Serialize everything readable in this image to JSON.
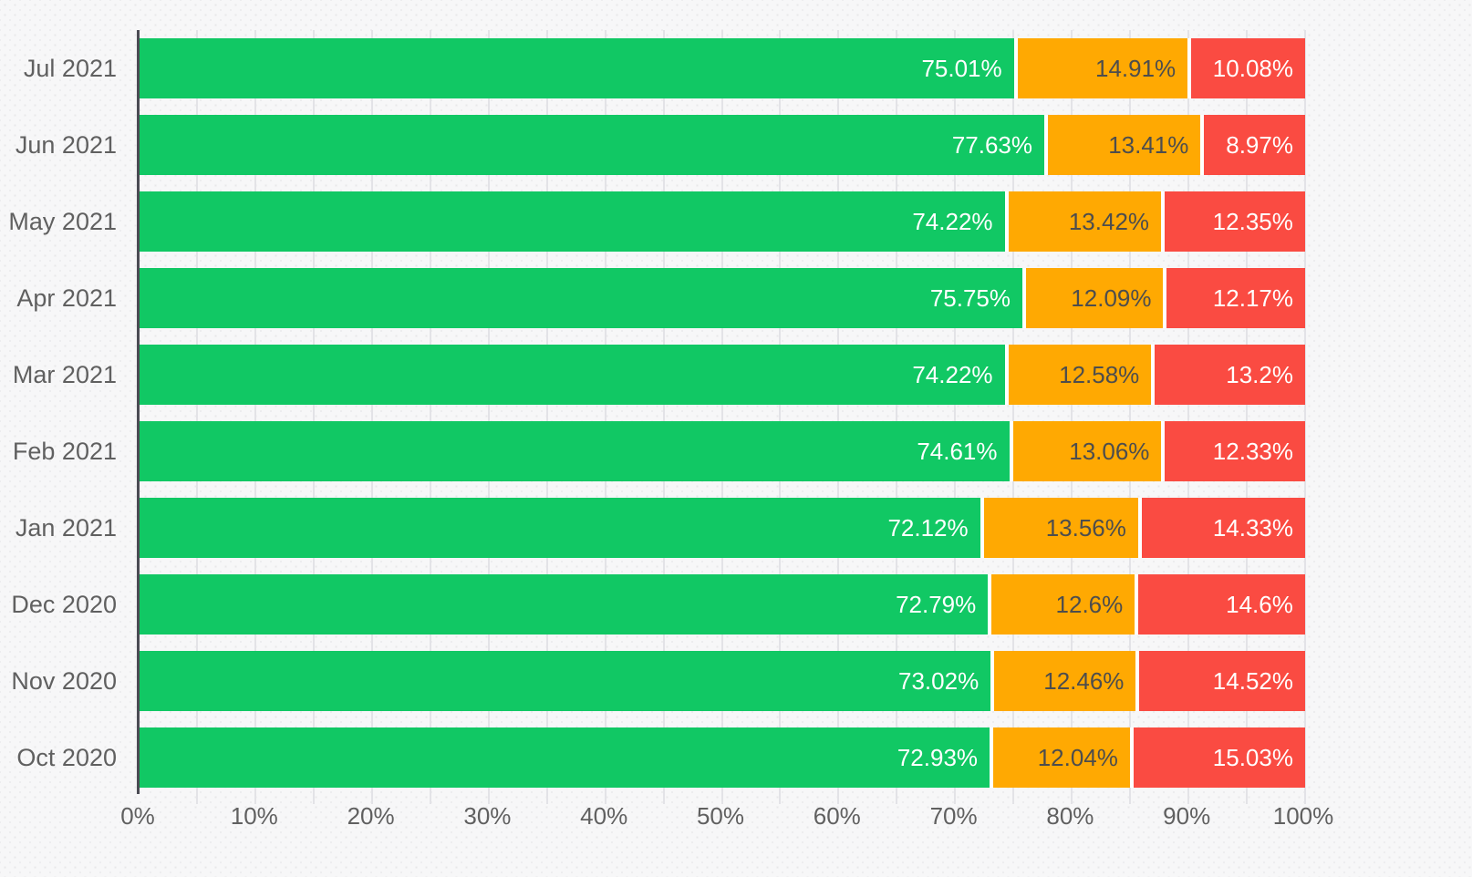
{
  "chart_data": {
    "type": "bar",
    "orientation": "horizontal",
    "stacked": true,
    "title": "",
    "xlabel": "",
    "ylabel": "",
    "legend": "none",
    "xlim": [
      0,
      100
    ],
    "x_tick_labels": [
      "0%",
      "10%",
      "20%",
      "30%",
      "40%",
      "50%",
      "60%",
      "70%",
      "80%",
      "90%",
      "100%"
    ],
    "x_tick_values": [
      0,
      10,
      20,
      30,
      40,
      50,
      60,
      70,
      80,
      90,
      100
    ],
    "grid": "vertical gridlines every 5%",
    "categories": [
      "Jul 2021",
      "Jun 2021",
      "May 2021",
      "Apr 2021",
      "Mar 2021",
      "Feb 2021",
      "Jan 2021",
      "Dec 2020",
      "Nov 2020",
      "Oct 2020"
    ],
    "series": [
      {
        "name": "green",
        "color": "#11c864",
        "label_color": "#ffffff",
        "values": [
          75.01,
          77.63,
          74.22,
          75.75,
          74.22,
          74.61,
          72.12,
          72.79,
          73.02,
          72.93
        ],
        "labels": [
          "75.01%",
          "77.63%",
          "74.22%",
          "75.75%",
          "74.22%",
          "74.61%",
          "72.12%",
          "72.79%",
          "73.02%",
          "72.93%"
        ]
      },
      {
        "name": "orange",
        "color": "#ffa902",
        "label_color": "#4d4d4d",
        "values": [
          14.91,
          13.41,
          13.42,
          12.09,
          12.58,
          13.06,
          13.56,
          12.6,
          12.46,
          12.04
        ],
        "labels": [
          "14.91%",
          "13.41%",
          "13.42%",
          "12.09%",
          "12.58%",
          "13.06%",
          "13.56%",
          "12.6%",
          "12.46%",
          "12.04%"
        ]
      },
      {
        "name": "red",
        "color": "#fa4b42",
        "label_color": "#ffffff",
        "values": [
          10.08,
          8.97,
          12.35,
          12.17,
          13.2,
          12.33,
          14.33,
          14.6,
          14.52,
          15.03
        ],
        "labels": [
          "10.08%",
          "8.97%",
          "12.35%",
          "12.17%",
          "13.2%",
          "12.33%",
          "14.33%",
          "14.6%",
          "14.52%",
          "15.03%"
        ]
      }
    ]
  },
  "layout_colors": {
    "background": "#f7f7f8",
    "gridline": "#e3e3e7",
    "axis_line": "#4b4b54",
    "axis_text": "#606060",
    "segment_separator": "#ffffff"
  }
}
